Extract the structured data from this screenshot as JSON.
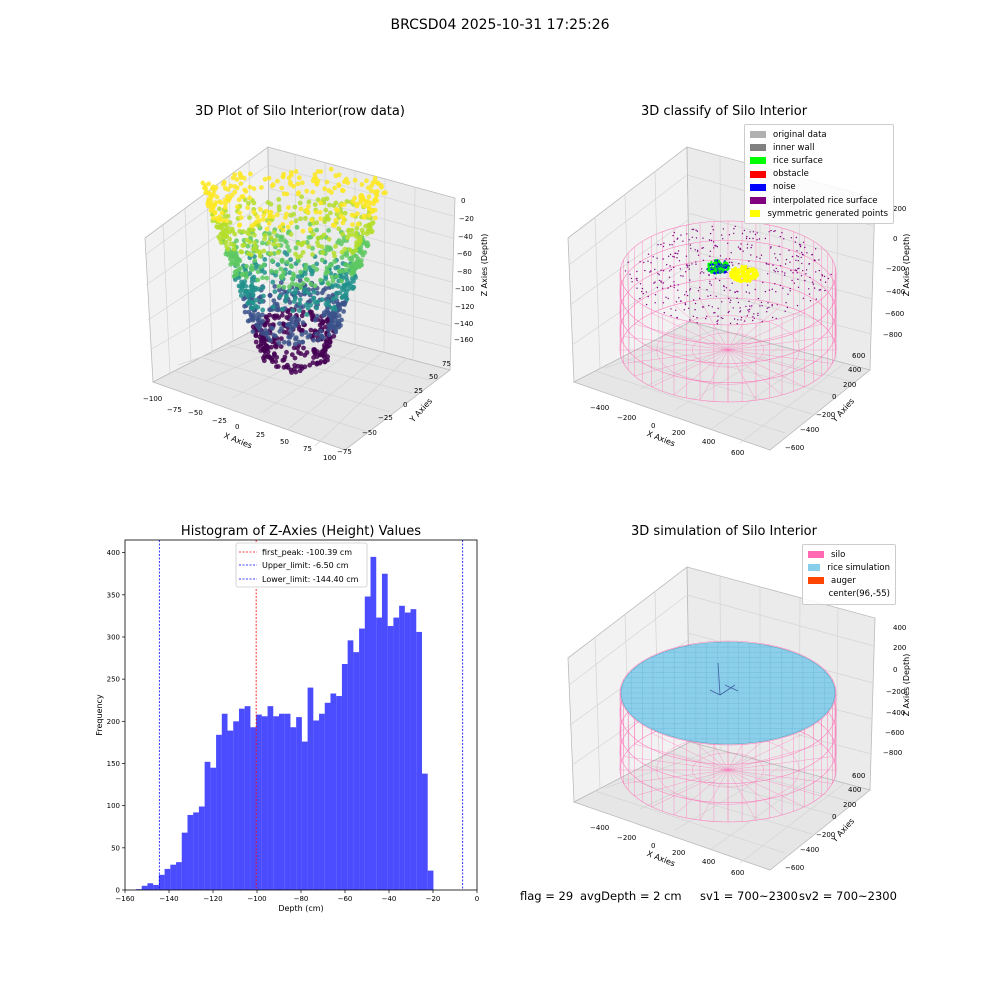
{
  "figure": {
    "suptitle": "BRCSD04 2025-10-31 17:25:26"
  },
  "panels": {
    "raw": {
      "title": "3D Plot of Silo Interior(row data)",
      "xlabel": "X Axies",
      "ylabel": "Y Axies",
      "zlabel": "Z Axies (Depth)",
      "xticks": [
        "−100",
        "−75",
        "−50",
        "−25",
        "0",
        "25",
        "50",
        "75",
        "100"
      ],
      "yticks": [
        "−75",
        "−50",
        "−25",
        "0",
        "25",
        "50",
        "75"
      ],
      "zticks": [
        "0",
        "−20",
        "−40",
        "−60",
        "−80",
        "−100",
        "−120",
        "−140",
        "−160"
      ]
    },
    "classify": {
      "title": "3D classify of Silo Interior",
      "xlabel": "X Axies",
      "ylabel": "Y Axies",
      "zlabel": "Z Axies (Depth)",
      "xticks": [
        "−400",
        "−200",
        "0",
        "200",
        "400",
        "600"
      ],
      "yticks": [
        "−600",
        "−400",
        "−200",
        "0",
        "200",
        "400",
        "600"
      ],
      "zticks": [
        "200",
        "0",
        "−200",
        "−400",
        "−600",
        "−800"
      ],
      "legend": [
        {
          "label": "original data",
          "color": "#b0b0b0"
        },
        {
          "label": "inner wall",
          "color": "#808080"
        },
        {
          "label": "rice surface",
          "color": "#00ff00"
        },
        {
          "label": "obstacle",
          "color": "#ff0000"
        },
        {
          "label": "noise",
          "color": "#0000ff"
        },
        {
          "label": "interpolated rice surface",
          "color": "#800080"
        },
        {
          "label": "symmetric generated points",
          "color": "#ffff00"
        }
      ]
    },
    "simulation": {
      "title": "3D simulation of Silo Interior",
      "xlabel": "X Axies",
      "ylabel": "Y Axies",
      "zlabel": "Z Axies (Depth)",
      "xticks": [
        "−400",
        "−200",
        "0",
        "200",
        "400",
        "600"
      ],
      "yticks": [
        "−600",
        "−400",
        "−200",
        "0",
        "200",
        "400",
        "600"
      ],
      "zticks": [
        "400",
        "200",
        "0",
        "−200",
        "−400",
        "−600",
        "−800"
      ],
      "legend": [
        {
          "label": "silo",
          "color": "#ff69b4"
        },
        {
          "label": "rice simulation",
          "color": "#87ceeb"
        },
        {
          "label": "auger",
          "color": "#ff4500"
        },
        {
          "label": "center(96,-55)",
          "color": "#ffffff"
        }
      ]
    }
  },
  "footer": {
    "flag": "flag = 29",
    "avg_depth": "avgDepth = 2 cm",
    "sv1": "sv1 = 700~2300",
    "sv2": "sv2 = 700~2300"
  },
  "chart_data": {
    "type": "bar",
    "title": "Histogram of Z-Axies (Height) Values",
    "xlabel": "Depth (cm)",
    "ylabel": "Frequency",
    "xlim": [
      -160,
      0
    ],
    "ylim": [
      0,
      415
    ],
    "xticks": [
      -160,
      -140,
      -120,
      -100,
      -80,
      -60,
      -40,
      -20,
      0
    ],
    "yticks": [
      0,
      50,
      100,
      150,
      200,
      250,
      300,
      350,
      400
    ],
    "bar_color": "#0000ff",
    "bins": [
      {
        "start": -155,
        "end": -152.4,
        "count": 1
      },
      {
        "start": -152.4,
        "end": -149.8,
        "count": 5
      },
      {
        "start": -149.8,
        "end": -147.2,
        "count": 8
      },
      {
        "start": -147.2,
        "end": -144.6,
        "count": 6
      },
      {
        "start": -144.6,
        "end": -142.0,
        "count": 18
      },
      {
        "start": -142.0,
        "end": -139.4,
        "count": 25
      },
      {
        "start": -139.4,
        "end": -136.8,
        "count": 30
      },
      {
        "start": -136.8,
        "end": -134.2,
        "count": 33
      },
      {
        "start": -134.2,
        "end": -131.6,
        "count": 68
      },
      {
        "start": -131.6,
        "end": -129.0,
        "count": 89
      },
      {
        "start": -129.0,
        "end": -126.4,
        "count": 92
      },
      {
        "start": -126.4,
        "end": -123.8,
        "count": 99
      },
      {
        "start": -123.8,
        "end": -121.2,
        "count": 152
      },
      {
        "start": -121.2,
        "end": -118.6,
        "count": 145
      },
      {
        "start": -118.6,
        "end": -116.0,
        "count": 184
      },
      {
        "start": -116.0,
        "end": -113.4,
        "count": 209
      },
      {
        "start": -113.4,
        "end": -110.8,
        "count": 189
      },
      {
        "start": -110.8,
        "end": -108.2,
        "count": 200
      },
      {
        "start": -108.2,
        "end": -105.6,
        "count": 215
      },
      {
        "start": -105.6,
        "end": -103.0,
        "count": 218
      },
      {
        "start": -103.0,
        "end": -100.4,
        "count": 193
      },
      {
        "start": -100.4,
        "end": -97.8,
        "count": 208
      },
      {
        "start": -97.8,
        "end": -95.2,
        "count": 206
      },
      {
        "start": -95.2,
        "end": -92.6,
        "count": 218
      },
      {
        "start": -92.6,
        "end": -90.0,
        "count": 206
      },
      {
        "start": -90.0,
        "end": -87.4,
        "count": 209
      },
      {
        "start": -87.4,
        "end": -84.8,
        "count": 209
      },
      {
        "start": -84.8,
        "end": -82.2,
        "count": 193
      },
      {
        "start": -82.2,
        "end": -79.6,
        "count": 205
      },
      {
        "start": -79.6,
        "end": -77.0,
        "count": 176
      },
      {
        "start": -77.0,
        "end": -74.4,
        "count": 240
      },
      {
        "start": -74.4,
        "end": -71.8,
        "count": 201
      },
      {
        "start": -71.8,
        "end": -69.2,
        "count": 209
      },
      {
        "start": -69.2,
        "end": -66.6,
        "count": 222
      },
      {
        "start": -66.6,
        "end": -64.0,
        "count": 233
      },
      {
        "start": -64.0,
        "end": -61.4,
        "count": 230
      },
      {
        "start": -61.4,
        "end": -58.8,
        "count": 268
      },
      {
        "start": -58.8,
        "end": -56.2,
        "count": 296
      },
      {
        "start": -56.2,
        "end": -53.6,
        "count": 282
      },
      {
        "start": -53.6,
        "end": -51.0,
        "count": 310
      },
      {
        "start": -51.0,
        "end": -48.4,
        "count": 348
      },
      {
        "start": -48.4,
        "end": -45.8,
        "count": 395
      },
      {
        "start": -45.8,
        "end": -43.2,
        "count": 323
      },
      {
        "start": -43.2,
        "end": -40.6,
        "count": 375
      },
      {
        "start": -40.6,
        "end": -38.0,
        "count": 313
      },
      {
        "start": -38.0,
        "end": -35.4,
        "count": 323
      },
      {
        "start": -35.4,
        "end": -32.8,
        "count": 337
      },
      {
        "start": -32.8,
        "end": -30.2,
        "count": 329
      },
      {
        "start": -30.2,
        "end": -27.6,
        "count": 333
      },
      {
        "start": -27.6,
        "end": -25.0,
        "count": 306
      },
      {
        "start": -25.0,
        "end": -22.4,
        "count": 138
      },
      {
        "start": -22.4,
        "end": -19.8,
        "count": 23
      }
    ],
    "reference_lines": [
      {
        "label": "first_peak: -100.39 cm",
        "x": -100.39,
        "color": "#ff0000"
      },
      {
        "label": "Upper_limit: -6.50 cm",
        "x": -6.5,
        "color": "#0000ff"
      },
      {
        "label": "Lower_limit: -144.40 cm",
        "x": -144.4,
        "color": "#0000ff"
      }
    ],
    "legend_position": "upper center"
  }
}
